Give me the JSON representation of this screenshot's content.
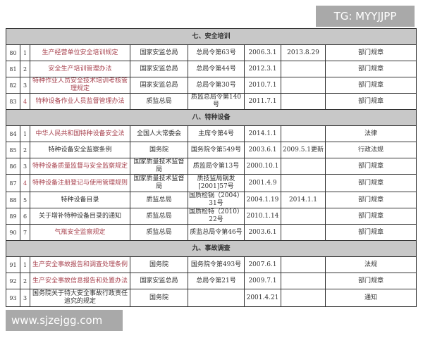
{
  "watermark_top": "TG: MYYJJPP",
  "watermark_bottom": "www.sjzejgg.com",
  "accent_red": "#a8434f",
  "sections": [
    {
      "title": "七、安全培训",
      "rows": [
        {
          "no": "80",
          "seq": "1",
          "name": "生产经营单位安全培训规定",
          "issuer": "国家安监总局",
          "doc": "总局令第63号",
          "date": "2006.3.1",
          "update": "2013.8.29",
          "type": "部门规章",
          "red": true,
          "seq_red": false
        },
        {
          "no": "81",
          "seq": "2",
          "name": "安全生产培训管理办法",
          "issuer": "国家安监总局",
          "doc": "总局令第44号",
          "date": "2012.3.1",
          "update": "",
          "type": "部门规章",
          "red": true,
          "seq_red": false
        },
        {
          "no": "82",
          "seq": "3",
          "name": "特种作业人员安全技术培训考核管理规定",
          "issuer": "国家安监总局",
          "doc": "总局令第30号",
          "date": "2010.7.1",
          "update": "",
          "type": "部门规章",
          "red": true,
          "seq_red": false
        },
        {
          "no": "83",
          "seq": "4",
          "name": "特种设备作业人员监督管理办法",
          "issuer": "质监总局",
          "doc": "质监总局令第140号",
          "date": "2011.7.1",
          "update": "",
          "type": "部门规章",
          "red": true,
          "seq_red": true
        }
      ]
    },
    {
      "title": "八、特种设备",
      "rows": [
        {
          "no": "84",
          "seq": "1",
          "name": "中华人民共和国特种设备安全法",
          "issuer": "全国人大常委会",
          "doc": "主席令第4号",
          "date": "2014.1.1",
          "update": "",
          "type": "法律",
          "red": true,
          "seq_red": false
        },
        {
          "no": "85",
          "seq": "2",
          "name": "特种设备安全监察条例",
          "issuer": "国务院",
          "doc": "国务院令第549号",
          "date": "2003.6.1",
          "update": "2009.5.1更新",
          "type": "行政法规",
          "red": false,
          "seq_red": false
        },
        {
          "no": "86",
          "seq": "3",
          "name": "特种设备质量监督与安全监察规定",
          "issuer": "国家质量技术监督局",
          "doc": "质监局令第13号",
          "date": "2000.10.1",
          "update": "",
          "type": "部门规章",
          "red": true,
          "seq_red": false
        },
        {
          "no": "87",
          "seq": "4",
          "name": "特种设备注册登记与使用管理规则",
          "issuer": "国家质量技术监督局",
          "doc": "质技监局锅发[2001]57号",
          "date": "2001.4.9",
          "update": "",
          "type": "部门规章",
          "red": true,
          "seq_red": true
        },
        {
          "no": "88",
          "seq": "5",
          "name": "特种设备目录",
          "issuer": "质监总局",
          "doc": "国质检锅（2004）31号",
          "date": "2004.1.19",
          "update": "2014.1.1",
          "type": "部门规章",
          "red": false,
          "seq_red": false
        },
        {
          "no": "89",
          "seq": "6",
          "name": "关于增补特种设备目录的通知",
          "issuer": "质监总局",
          "doc": "国质检特（2010）22号",
          "date": "2010.1.14",
          "update": "",
          "type": "部门规章",
          "red": false,
          "seq_red": false
        },
        {
          "no": "90",
          "seq": "7",
          "name": "气瓶安全监察规定",
          "issuer": "质监总局",
          "doc": "质监总局令第46号",
          "date": "2003.6.1",
          "update": "",
          "type": "部门规章",
          "red": true,
          "seq_red": false
        }
      ]
    },
    {
      "title": "九、事故调查",
      "rows": [
        {
          "no": "91",
          "seq": "1",
          "name": "生产安全事故报告和调查处理条例",
          "issuer": "国务院",
          "doc": "国务院令第493号",
          "date": "2007.6.1",
          "update": "",
          "type": "法规",
          "red": true,
          "seq_red": false
        },
        {
          "no": "92",
          "seq": "2",
          "name": "生产安全事故信息报告和处置办法",
          "issuer": "国家安监总局",
          "doc": "总局令第21号",
          "date": "2009.7.1",
          "update": "",
          "type": "部门规章",
          "red": true,
          "seq_red": false
        },
        {
          "no": "93",
          "seq": "3",
          "name": "国务院关于特大安全事故行政责任追究的规定",
          "issuer": "国务院",
          "doc": "",
          "date": "2001.4.21",
          "update": "",
          "type": "通知",
          "red": false,
          "seq_red": false
        }
      ]
    }
  ]
}
